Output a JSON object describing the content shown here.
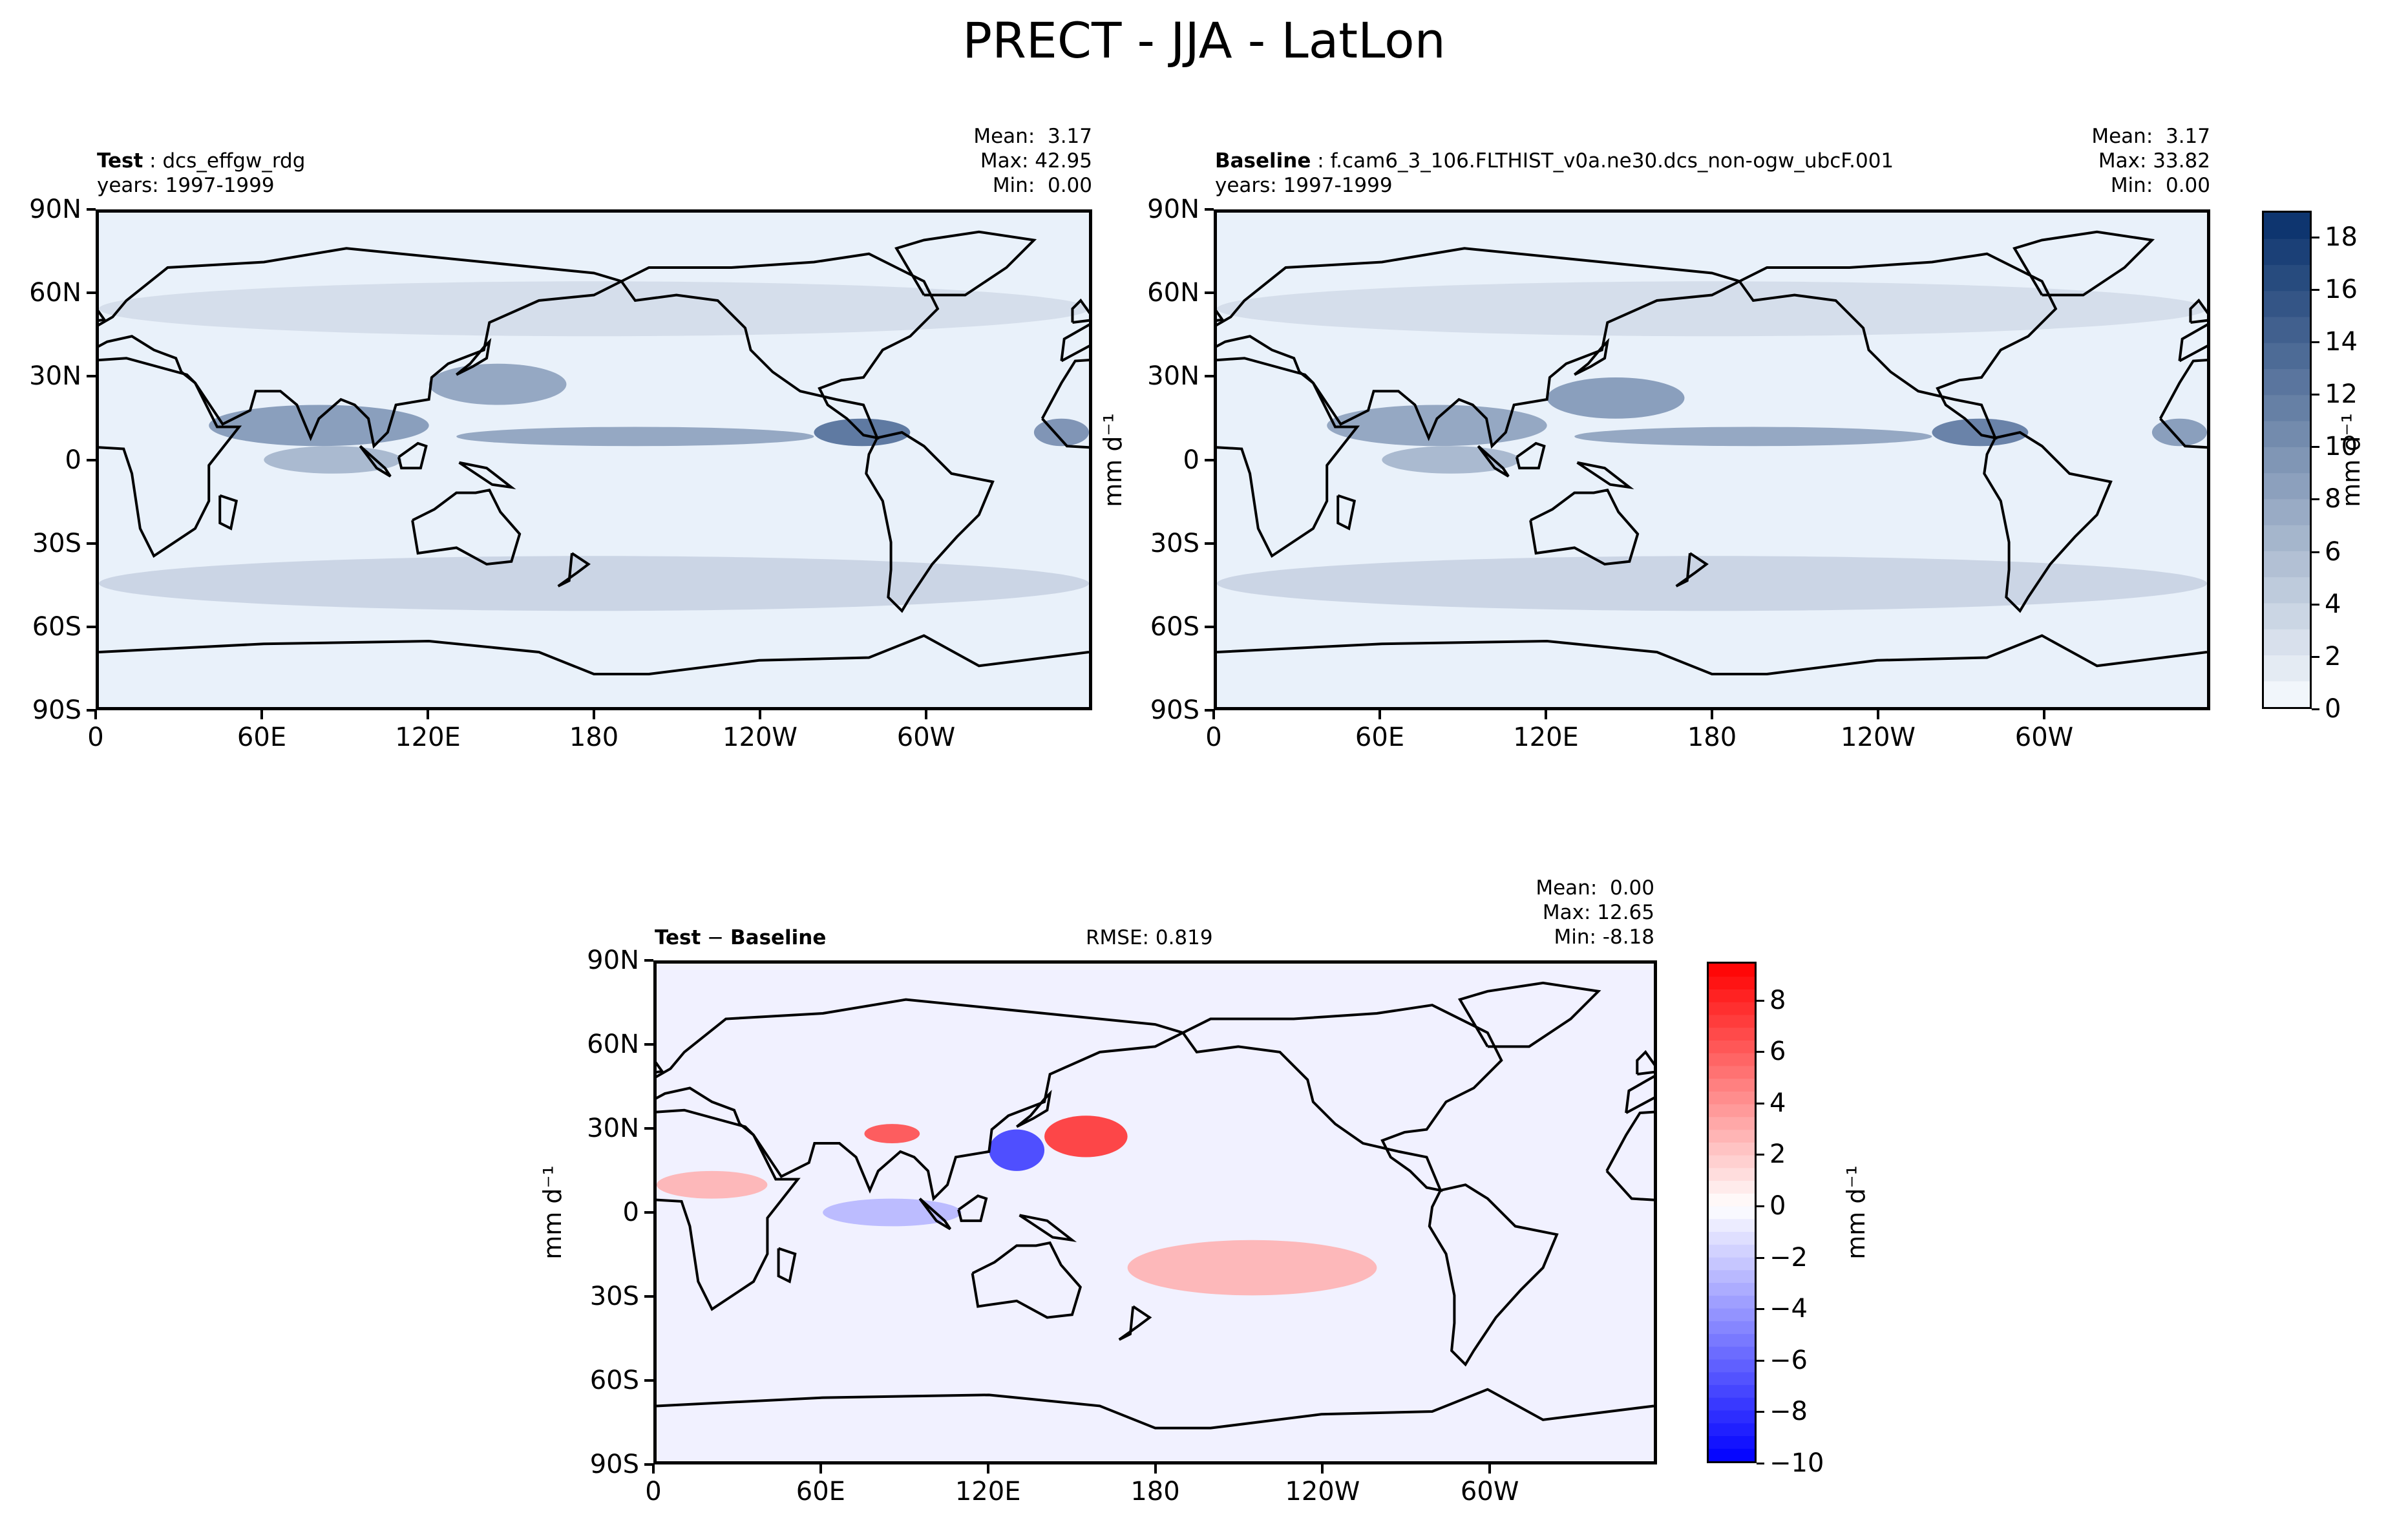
{
  "figure": {
    "title": "PRECT - JJA - LatLon"
  },
  "panels": {
    "test": {
      "label_bold": "Test",
      "label_rest": " : dcs_effgw_rdg",
      "years": "years: 1997-1999",
      "mean": "Mean:  3.17",
      "max": "Max: 42.95",
      "min": "Min:  0.00"
    },
    "baseline": {
      "label_bold": "Baseline",
      "label_rest": " : f.cam6_3_106.FLTHIST_v0a.ne30.dcs_non-ogw_ubcF.001",
      "years": "years: 1997-1999",
      "mean": "Mean:  3.17",
      "max": "Max: 33.82",
      "min": "Min:  0.00"
    },
    "diff": {
      "label_bold": "Test",
      "label_mid": " − ",
      "label_bold2": "Baseline",
      "rmse": "RMSE: 0.819",
      "mean": "Mean:  0.00",
      "max": "Max: 12.65",
      "min": "Min: -8.18"
    }
  },
  "units_label": "mm d⁻¹",
  "colors": {
    "blues_low": "#f7fbff",
    "blues_high": "#08306b",
    "diff_neg": "#0000ff",
    "diff_zero": "#ffffff",
    "diff_pos": "#ff0000"
  },
  "chart_data": [
    {
      "type": "heatmap",
      "panel": "test",
      "xticks": [
        "0",
        "60E",
        "120E",
        "180",
        "120W",
        "60W"
      ],
      "yticks": [
        "90N",
        "60N",
        "30N",
        "0",
        "30S",
        "60S",
        "90S"
      ],
      "xlim": [
        0,
        360
      ],
      "ylim": [
        -90,
        90
      ],
      "colormap": "Blues",
      "clim": [
        0,
        19
      ],
      "bands": [
        {
          "lon": [
            40,
            120
          ],
          "lat": [
            5,
            20
          ],
          "value": 10
        },
        {
          "lon": [
            60,
            110
          ],
          "lat": [
            -5,
            5
          ],
          "value": 7
        },
        {
          "lon": [
            120,
            170
          ],
          "lat": [
            20,
            35
          ],
          "value": 9
        },
        {
          "lon": [
            130,
            260
          ],
          "lat": [
            5,
            12
          ],
          "value": 9
        },
        {
          "lon": [
            260,
            295
          ],
          "lat": [
            5,
            15
          ],
          "value": 14
        },
        {
          "lon": [
            340,
            360
          ],
          "lat": [
            5,
            15
          ],
          "value": 11
        },
        {
          "lon": [
            0,
            360
          ],
          "lat": [
            -55,
            -35
          ],
          "value": 4
        },
        {
          "lon": [
            0,
            360
          ],
          "lat": [
            45,
            65
          ],
          "value": 3
        }
      ]
    },
    {
      "type": "heatmap",
      "panel": "baseline",
      "xticks": [
        "0",
        "60E",
        "120E",
        "180",
        "120W",
        "60W"
      ],
      "yticks": [
        "90N",
        "60N",
        "30N",
        "0",
        "30S",
        "60S",
        "90S"
      ],
      "xlim": [
        0,
        360
      ],
      "ylim": [
        -90,
        90
      ],
      "colormap": "Blues",
      "clim": [
        0,
        19
      ],
      "colorbar_ticks": [
        0,
        2,
        4,
        6,
        8,
        10,
        12,
        14,
        16,
        18
      ],
      "bands": [
        {
          "lon": [
            40,
            120
          ],
          "lat": [
            5,
            20
          ],
          "value": 9
        },
        {
          "lon": [
            60,
            110
          ],
          "lat": [
            -5,
            5
          ],
          "value": 7
        },
        {
          "lon": [
            120,
            170
          ],
          "lat": [
            15,
            30
          ],
          "value": 10
        },
        {
          "lon": [
            130,
            260
          ],
          "lat": [
            5,
            12
          ],
          "value": 9
        },
        {
          "lon": [
            260,
            295
          ],
          "lat": [
            5,
            15
          ],
          "value": 13
        },
        {
          "lon": [
            340,
            360
          ],
          "lat": [
            5,
            15
          ],
          "value": 10
        },
        {
          "lon": [
            0,
            360
          ],
          "lat": [
            -55,
            -35
          ],
          "value": 4
        },
        {
          "lon": [
            0,
            360
          ],
          "lat": [
            45,
            65
          ],
          "value": 3
        }
      ]
    },
    {
      "type": "heatmap",
      "panel": "diff",
      "xticks": [
        "0",
        "60E",
        "120E",
        "180",
        "120W",
        "60W"
      ],
      "yticks": [
        "90N",
        "60N",
        "30N",
        "0",
        "30S",
        "60S",
        "90S"
      ],
      "xlim": [
        0,
        360
      ],
      "ylim": [
        -90,
        90
      ],
      "colormap": "bwr",
      "clim": [
        -10,
        9.5
      ],
      "colorbar_ticks": [
        8,
        6,
        4,
        2,
        0,
        -2,
        -4,
        -6,
        -8,
        -10
      ],
      "colorbar_tick_labels": [
        "8",
        "6",
        "4",
        "2",
        "0",
        "−2",
        "−4",
        "−6",
        "−8",
        "−10"
      ],
      "bands": [
        {
          "lon": [
            75,
            95
          ],
          "lat": [
            25,
            32
          ],
          "value": 7
        },
        {
          "lon": [
            120,
            140
          ],
          "lat": [
            15,
            30
          ],
          "value": -8
        },
        {
          "lon": [
            140,
            170
          ],
          "lat": [
            20,
            35
          ],
          "value": 8
        },
        {
          "lon": [
            60,
            110
          ],
          "lat": [
            -5,
            5
          ],
          "value": -3
        },
        {
          "lon": [
            170,
            260
          ],
          "lat": [
            -30,
            -10
          ],
          "value": 3
        },
        {
          "lon": [
            0,
            40
          ],
          "lat": [
            5,
            15
          ],
          "value": 3
        }
      ]
    }
  ]
}
